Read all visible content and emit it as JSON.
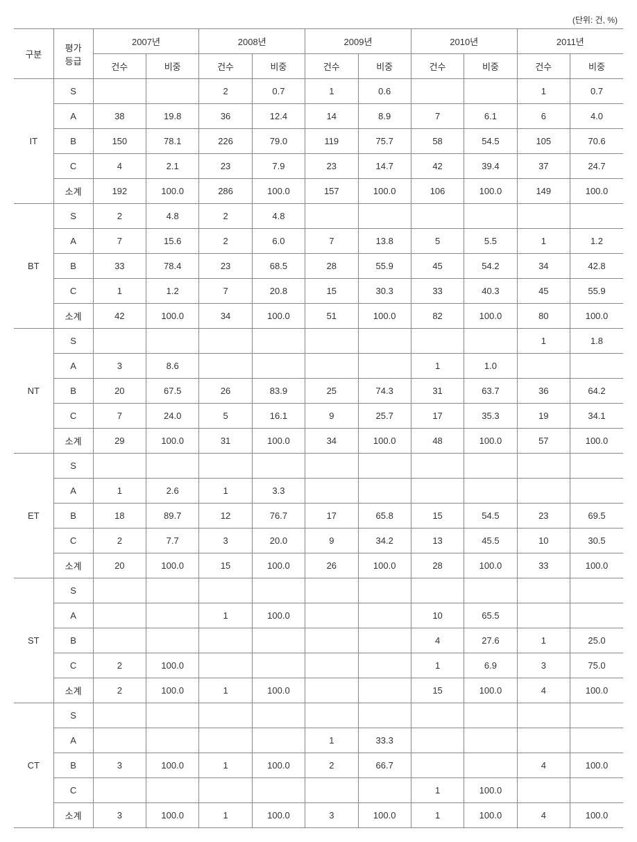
{
  "unit_label": "(단위: 건, %)",
  "headers": {
    "category": "구분",
    "grade": "평가\n등급",
    "years": [
      "2007년",
      "2008년",
      "2009년",
      "2010년",
      "2011년"
    ],
    "sub": {
      "count": "건수",
      "ratio": "비중"
    }
  },
  "grades": [
    "S",
    "A",
    "B",
    "C",
    "소계"
  ],
  "categories": [
    {
      "name": "IT",
      "rows": [
        [
          "",
          "",
          "2",
          "0.7",
          "1",
          "0.6",
          "",
          "",
          "1",
          "0.7"
        ],
        [
          "38",
          "19.8",
          "36",
          "12.4",
          "14",
          "8.9",
          "7",
          "6.1",
          "6",
          "4.0"
        ],
        [
          "150",
          "78.1",
          "226",
          "79.0",
          "119",
          "75.7",
          "58",
          "54.5",
          "105",
          "70.6"
        ],
        [
          "4",
          "2.1",
          "23",
          "7.9",
          "23",
          "14.7",
          "42",
          "39.4",
          "37",
          "24.7"
        ],
        [
          "192",
          "100.0",
          "286",
          "100.0",
          "157",
          "100.0",
          "106",
          "100.0",
          "149",
          "100.0"
        ]
      ]
    },
    {
      "name": "BT",
      "rows": [
        [
          "2",
          "4.8",
          "2",
          "4.8",
          "",
          "",
          "",
          "",
          "",
          ""
        ],
        [
          "7",
          "15.6",
          "2",
          "6.0",
          "7",
          "13.8",
          "5",
          "5.5",
          "1",
          "1.2"
        ],
        [
          "33",
          "78.4",
          "23",
          "68.5",
          "28",
          "55.9",
          "45",
          "54.2",
          "34",
          "42.8"
        ],
        [
          "1",
          "1.2",
          "7",
          "20.8",
          "15",
          "30.3",
          "33",
          "40.3",
          "45",
          "55.9"
        ],
        [
          "42",
          "100.0",
          "34",
          "100.0",
          "51",
          "100.0",
          "82",
          "100.0",
          "80",
          "100.0"
        ]
      ]
    },
    {
      "name": "NT",
      "rows": [
        [
          "",
          "",
          "",
          "",
          "",
          "",
          "",
          "",
          "1",
          "1.8"
        ],
        [
          "3",
          "8.6",
          "",
          "",
          "",
          "",
          "1",
          "1.0",
          "",
          ""
        ],
        [
          "20",
          "67.5",
          "26",
          "83.9",
          "25",
          "74.3",
          "31",
          "63.7",
          "36",
          "64.2"
        ],
        [
          "7",
          "24.0",
          "5",
          "16.1",
          "9",
          "25.7",
          "17",
          "35.3",
          "19",
          "34.1"
        ],
        [
          "29",
          "100.0",
          "31",
          "100.0",
          "34",
          "100.0",
          "48",
          "100.0",
          "57",
          "100.0"
        ]
      ]
    },
    {
      "name": "ET",
      "rows": [
        [
          "",
          "",
          "",
          "",
          "",
          "",
          "",
          "",
          "",
          ""
        ],
        [
          "1",
          "2.6",
          "1",
          "3.3",
          "",
          "",
          "",
          "",
          "",
          ""
        ],
        [
          "18",
          "89.7",
          "12",
          "76.7",
          "17",
          "65.8",
          "15",
          "54.5",
          "23",
          "69.5"
        ],
        [
          "2",
          "7.7",
          "3",
          "20.0",
          "9",
          "34.2",
          "13",
          "45.5",
          "10",
          "30.5"
        ],
        [
          "20",
          "100.0",
          "15",
          "100.0",
          "26",
          "100.0",
          "28",
          "100.0",
          "33",
          "100.0"
        ]
      ]
    },
    {
      "name": "ST",
      "rows": [
        [
          "",
          "",
          "",
          "",
          "",
          "",
          "",
          "",
          "",
          ""
        ],
        [
          "",
          "",
          "1",
          "100.0",
          "",
          "",
          "10",
          "65.5",
          "",
          ""
        ],
        [
          "",
          "",
          "",
          "",
          "",
          "",
          "4",
          "27.6",
          "1",
          "25.0"
        ],
        [
          "2",
          "100.0",
          "",
          "",
          "",
          "",
          "1",
          "6.9",
          "3",
          "75.0"
        ],
        [
          "2",
          "100.0",
          "1",
          "100.0",
          "",
          "",
          "15",
          "100.0",
          "4",
          "100.0"
        ]
      ]
    },
    {
      "name": "CT",
      "rows": [
        [
          "",
          "",
          "",
          "",
          "",
          "",
          "",
          "",
          "",
          ""
        ],
        [
          "",
          "",
          "",
          "",
          "1",
          "33.3",
          "",
          "",
          "",
          ""
        ],
        [
          "3",
          "100.0",
          "1",
          "100.0",
          "2",
          "66.7",
          "",
          "",
          "4",
          "100.0"
        ],
        [
          "",
          "",
          "",
          "",
          "",
          "",
          "1",
          "100.0",
          "",
          ""
        ],
        [
          "3",
          "100.0",
          "1",
          "100.0",
          "3",
          "100.0",
          "1",
          "100.0",
          "4",
          "100.0"
        ]
      ]
    }
  ]
}
